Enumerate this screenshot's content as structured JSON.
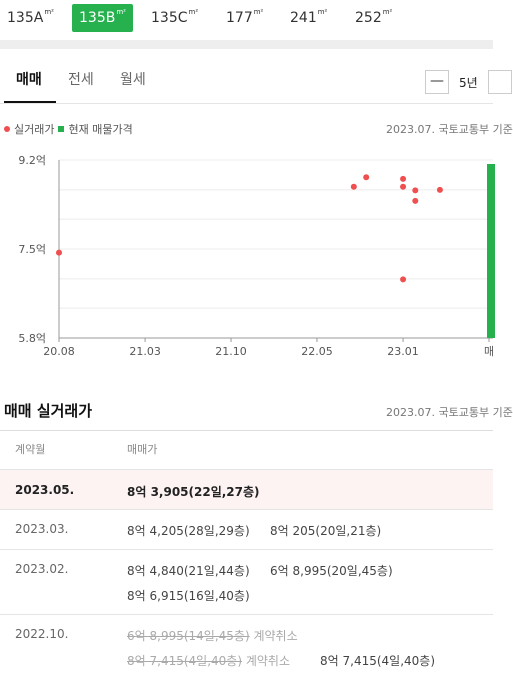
{
  "area_tabs": [
    {
      "label": "135A",
      "unit": "m²"
    },
    {
      "label": "135B",
      "unit": "m²"
    },
    {
      "label": "135C",
      "unit": "m²"
    },
    {
      "label": "177",
      "unit": "m²"
    },
    {
      "label": "241",
      "unit": "m²"
    },
    {
      "label": "252",
      "unit": "m²"
    }
  ],
  "trade_tabs": [
    "매매",
    "전세",
    "월세"
  ],
  "period": {
    "zoom_out": "—",
    "label": "5년"
  },
  "legend": {
    "actual": "실거래가",
    "listing": "현재 매물가격",
    "source": "2023.07. 국토교통부 기준"
  },
  "chart_data": {
    "type": "scatter",
    "y_tick_labels": [
      "9.2억",
      "7.5억",
      "5.8억"
    ],
    "y_ticks": [
      9.2,
      7.5,
      5.8
    ],
    "ylim": [
      5.8,
      9.2
    ],
    "x_tick_labels": [
      "20.08",
      "21.03",
      "21.10",
      "22.05",
      "23.01",
      "매"
    ],
    "x_ticks": [
      2020.583,
      2021.167,
      2021.75,
      2022.333,
      2022.917,
      2023.5
    ],
    "xlim": [
      2020.583,
      2023.5
    ],
    "series": [
      {
        "name": "실거래가",
        "color": "#ef4f4f",
        "points": [
          {
            "x": 2020.583,
            "y": 7.43
          },
          {
            "x": 2022.583,
            "y": 8.69
          },
          {
            "x": 2022.667,
            "y": 8.87
          },
          {
            "x": 2022.917,
            "y": 8.84
          },
          {
            "x": 2022.917,
            "y": 8.69
          },
          {
            "x": 2022.917,
            "y": 6.92
          },
          {
            "x": 2023.0,
            "y": 8.42
          },
          {
            "x": 2023.0,
            "y": 8.62
          },
          {
            "x": 2023.167,
            "y": 8.63
          }
        ]
      },
      {
        "name": "현재 매물가격",
        "color": "#26b14e",
        "bar": {
          "x": 2023.5,
          "y_min": 5.8,
          "y_max": 9.2
        }
      }
    ]
  },
  "sales": {
    "title": "매매 실거래가",
    "source": "2023.07. 국토교통부 기준",
    "headers": {
      "date": "계약월",
      "price": "매매가"
    },
    "rows": [
      {
        "date": "2023.05.",
        "price1": "8억 3,905(22일,27층)"
      },
      {
        "date": "2023.03.",
        "price1": "8억 4,205(28일,29층)",
        "price2": "8억 205(20일,21층)"
      },
      {
        "date": "2023.02.",
        "price1": "8억 4,840(21일,44층)",
        "price2": "6억 8,995(20일,45층)",
        "price3": "8억 6,915(16일,40층)"
      },
      {
        "date": "2022.10.",
        "cancel1": "6억 8,995(14일,45층)",
        "cancel1_label": "계약취소",
        "cancel2": "8억 7,415(4일,40층)",
        "cancel2_label": "계약취소",
        "price4": "8억 7,415(4일,40층)"
      }
    ]
  }
}
